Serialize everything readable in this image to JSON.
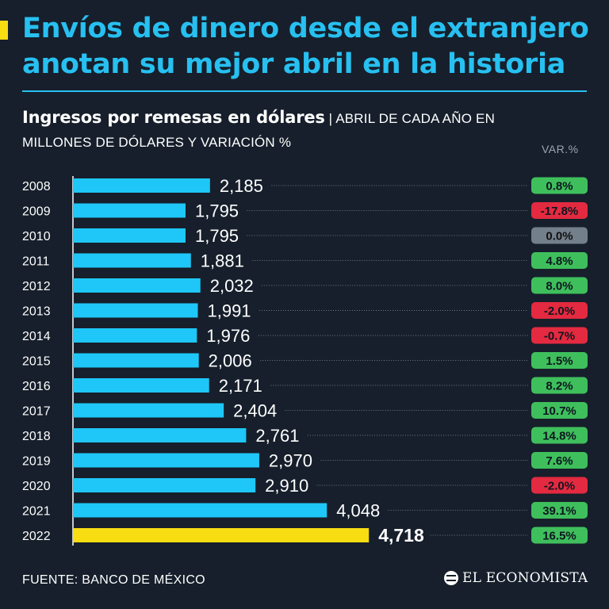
{
  "header": {
    "title_line1": "Envíos de dinero desde el extranjero",
    "title_line2": "anotan su mejor abril en la historia",
    "subtitle_strong": "Ingresos por remesas en dólares",
    "subtitle_separator": " | ",
    "subtitle_rest_1": "ABRIL DE CADA AÑO EN",
    "subtitle_rest_2": "MILLONES DE DÓLARES Y VARIACIÓN %",
    "var_label": "VAR.%"
  },
  "footer": {
    "source": "FUENTE: BANCO DE MÉXICO",
    "brand": "EL ECONOMISTA"
  },
  "colors": {
    "background": "#161f2b",
    "bar": "#1ec7f7",
    "bar_highlight": "#f7dd12",
    "positive": "#3fbf5c",
    "negative": "#e32a40",
    "neutral": "#737f8a"
  },
  "chart_data": {
    "type": "bar",
    "orientation": "horizontal",
    "categories": [
      "2008",
      "2009",
      "2010",
      "2011",
      "2012",
      "2013",
      "2014",
      "2015",
      "2016",
      "2017",
      "2018",
      "2019",
      "2020",
      "2021",
      "2022"
    ],
    "values": [
      2185,
      1795,
      1795,
      1881,
      2032,
      1991,
      1976,
      2006,
      2171,
      2404,
      2761,
      2970,
      2910,
      4048,
      4718
    ],
    "value_labels": [
      "2,185",
      "1,795",
      "1,795",
      "1,881",
      "2,032",
      "1,991",
      "1,976",
      "2,006",
      "2,171",
      "2,404",
      "2,761",
      "2,970",
      "2,910",
      "4,048",
      "4,718"
    ],
    "variation": [
      0.8,
      -17.8,
      0.0,
      4.8,
      8.0,
      -2.0,
      -0.7,
      1.5,
      8.2,
      10.7,
      14.8,
      7.6,
      -2.0,
      39.1,
      16.5
    ],
    "variation_labels": [
      "0.8%",
      "-17.8%",
      "0.0%",
      "4.8%",
      "8.0%",
      "-2.0%",
      "-0.7%",
      "1.5%",
      "8.2%",
      "10.7%",
      "14.8%",
      "7.6%",
      "-2.0%",
      "39.1%",
      "16.5%"
    ],
    "highlight_category": "2022",
    "xlim": [
      0,
      6000
    ]
  }
}
